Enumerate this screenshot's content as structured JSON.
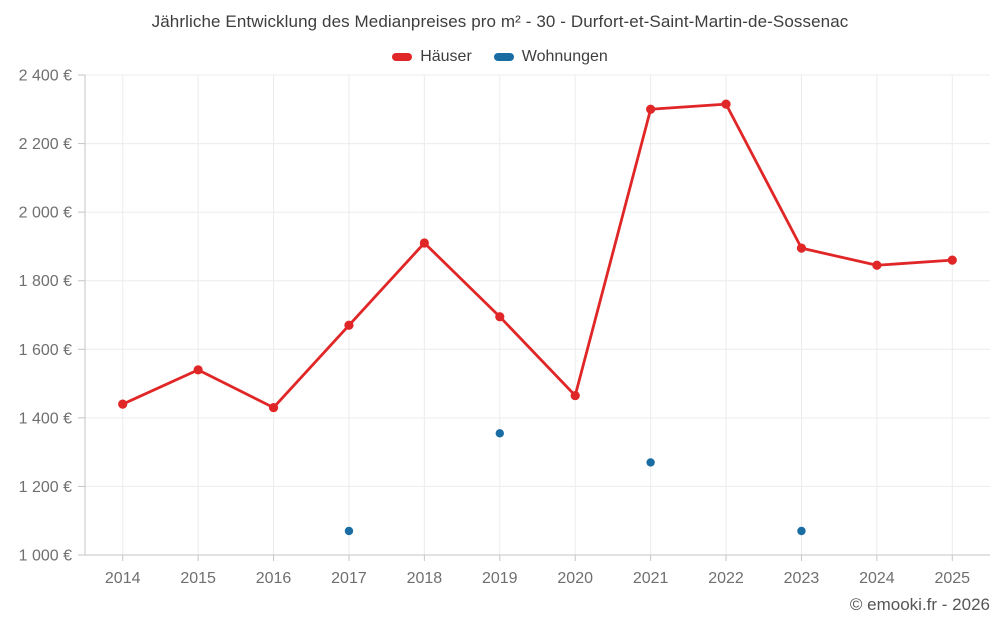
{
  "title": "Jährliche Entwicklung des Medianpreises pro m² - 30 - Durfort-et-Saint-Martin-de-Sossenac",
  "legend": [
    {
      "label": "Häuser",
      "color": "#e02627"
    },
    {
      "label": "Wohnungen",
      "color": "#1a6da3"
    }
  ],
  "watermark": "© emooki.fr - 2026",
  "chart_data": {
    "type": "line",
    "title": "Jährliche Entwicklung des Medianpreises pro m² - 30 - Durfort-et-Saint-Martin-de-Sossenac",
    "categories": [
      "2014",
      "2015",
      "2016",
      "2017",
      "2018",
      "2019",
      "2020",
      "2021",
      "2022",
      "2023",
      "2024",
      "2025"
    ],
    "series": [
      {
        "name": "Häuser",
        "key": "haeuser",
        "color": "#e02627",
        "style": "line-with-points",
        "values": [
          1440,
          1540,
          1430,
          1670,
          1910,
          1695,
          1465,
          2300,
          2315,
          1895,
          1845,
          1860
        ]
      },
      {
        "name": "Wohnungen",
        "key": "wohnungen",
        "color": "#1a6da3",
        "style": "points-only",
        "values": [
          null,
          null,
          null,
          1070,
          null,
          1355,
          null,
          1270,
          null,
          1070,
          null,
          null
        ]
      }
    ],
    "xlabel": "",
    "ylabel": "",
    "ylim": [
      1000,
      2400
    ],
    "ytick_step": 200,
    "y_tick_labels": [
      "1 000 €",
      "1 200 €",
      "1 400 €",
      "1 600 €",
      "1 800 €",
      "2 000 €",
      "2 200 €",
      "2 400 €"
    ],
    "x_tick_labels": [
      "2014",
      "2015",
      "2016",
      "2017",
      "2018",
      "2019",
      "2020",
      "2021",
      "2022",
      "2023",
      "2024",
      "2025"
    ],
    "grid": true,
    "legend_position": "top",
    "currency": "€"
  },
  "colors": {
    "grid": "#ececec",
    "axis": "#c6c6c6",
    "tick_label": "#6f6f6f",
    "title_text": "#3e3e3e"
  }
}
